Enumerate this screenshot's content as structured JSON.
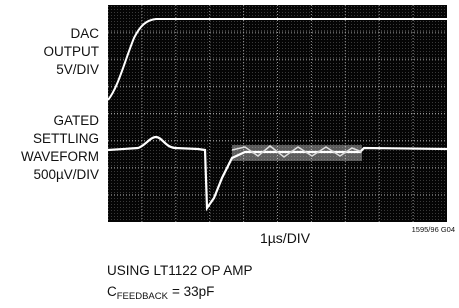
{
  "labels": {
    "dac": [
      "DAC",
      "OUTPUT",
      "5V/DIV"
    ],
    "gated": [
      "GATED",
      "SETTLING",
      "WAVEFORM",
      "500µV/DIV"
    ]
  },
  "x_axis_label": "1µs/DIV",
  "figure_id": "1595/96 G04",
  "caption": {
    "line1": "USING LT1122 OP AMP",
    "line2_symbol": "C",
    "line2_subscript": "FEEDBACK",
    "line2_rest": "= 33pF"
  }
}
